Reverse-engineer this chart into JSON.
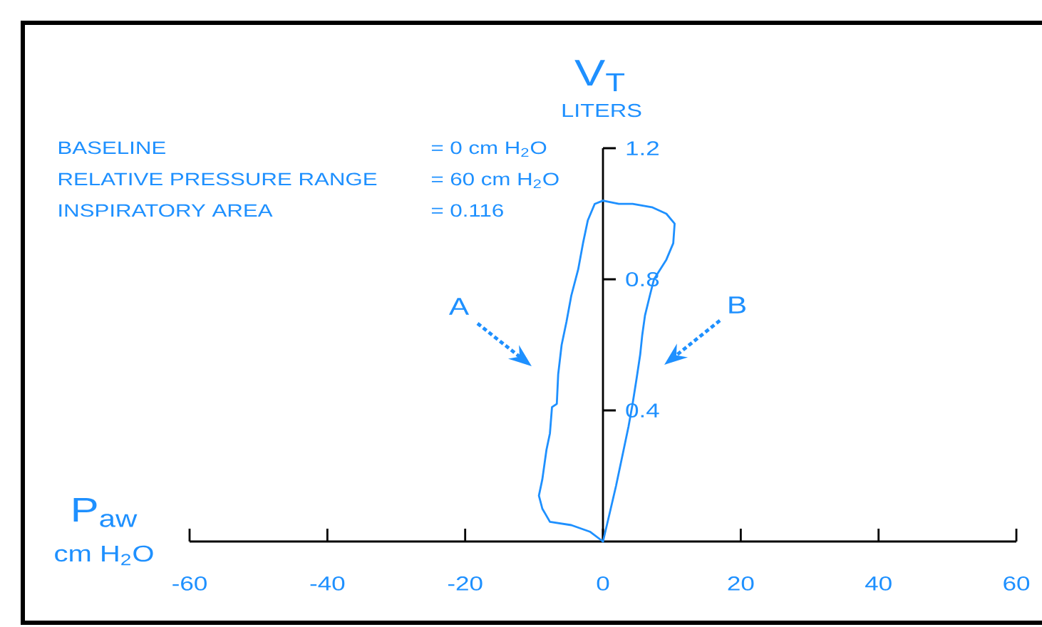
{
  "chart_data": {
    "type": "line",
    "xlabel": "P$_{aw}$",
    "ylabel": "V$_{T}$",
    "annotations": [
      "LITERS",
      "cm H$_{2}$O",
      "BASELINE",
      "= 0 cm H$_{2}$O",
      "RELATIVE PRESSURE RANGE",
      "= 60 cm H$_{2}$O",
      "INSPIRATORY AREA",
      "= 0.116",
      "A",
      "B"
    ],
    "series": [
      {
        "color": "#1e90ff",
        "x": [
          0,
          0.9,
          1.9,
          3.0,
          3.7,
          4.3,
          4.9,
          5.4,
          5.7,
          6.1,
          6.8,
          7.4,
          9.2,
          10.2,
          10.4,
          9.2,
          7.1,
          4.3,
          2.3,
          0
        ],
        "values": [
          0,
          0.08,
          0.17,
          0.28,
          0.35,
          0.42,
          0.5,
          0.57,
          0.63,
          0.69,
          0.75,
          0.8,
          0.86,
          0.91,
          0.97,
          1.0,
          1.02,
          1.03,
          1.03,
          1.04
        ]
      },
      {
        "color": "#1e90ff",
        "x": [
          0,
          -1.2,
          -2.2,
          -2.9,
          -3.6,
          -4.6,
          -5.3,
          -6.0,
          -6.5,
          -6.7,
          -7.4,
          -7.7,
          -8.2,
          -8.8,
          -9.3,
          -8.8,
          -7.7,
          -4.6,
          -1.9,
          0
        ],
        "values": [
          1.04,
          1.03,
          0.98,
          0.91,
          0.83,
          0.75,
          0.67,
          0.6,
          0.51,
          0.42,
          0.41,
          0.33,
          0.28,
          0.19,
          0.14,
          0.1,
          0.06,
          0.05,
          0.03,
          0
        ]
      }
    ],
    "xlim": [
      -60,
      60
    ],
    "ylim": [
      0,
      1.2
    ],
    "xticks": [
      -60,
      -40,
      -20,
      0,
      20,
      40,
      60
    ],
    "yticks": [
      0.4,
      0.8,
      1.2
    ]
  }
}
